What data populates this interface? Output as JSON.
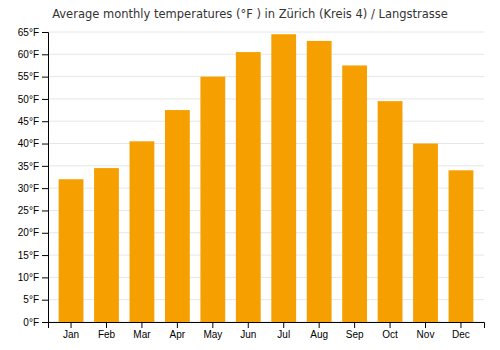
{
  "chart_data": {
    "type": "bar",
    "title": "Average monthly temperatures (°F ) in Zürich (Kreis 4) / Langstrasse",
    "categories": [
      "Jan",
      "Feb",
      "Mar",
      "Apr",
      "May",
      "Jun",
      "Jul",
      "Aug",
      "Sep",
      "Oct",
      "Nov",
      "Dec"
    ],
    "values": [
      32.0,
      34.5,
      40.5,
      47.5,
      55.0,
      60.5,
      64.5,
      63.0,
      57.5,
      49.5,
      40.0,
      34.0
    ],
    "color": "#F5A000",
    "ylim": [
      0,
      65
    ],
    "yticks": [
      {
        "value": 0,
        "label": "0°F"
      },
      {
        "value": 5,
        "label": "5°F"
      },
      {
        "value": 10,
        "label": "10°F"
      },
      {
        "value": 15,
        "label": "15°F"
      },
      {
        "value": 20,
        "label": "20°F"
      },
      {
        "value": 25,
        "label": "25°F"
      },
      {
        "value": 30,
        "label": "30°F"
      },
      {
        "value": 35,
        "label": "35°F"
      },
      {
        "value": 40,
        "label": "40°F"
      },
      {
        "value": 45,
        "label": "45°F"
      },
      {
        "value": 50,
        "label": "50°F"
      },
      {
        "value": 55,
        "label": "55°F"
      },
      {
        "value": 60,
        "label": "60°F"
      },
      {
        "value": 65,
        "label": "65°F"
      }
    ],
    "grid": true
  }
}
